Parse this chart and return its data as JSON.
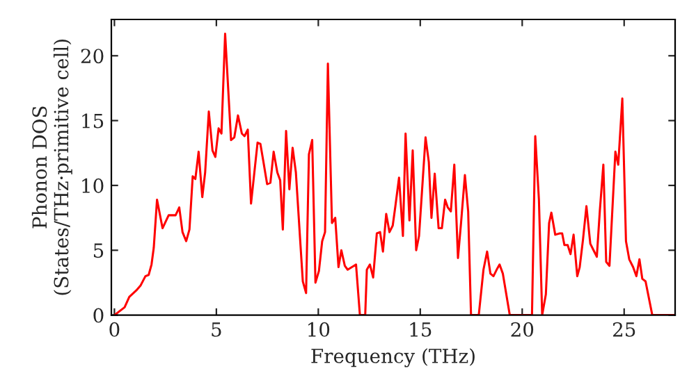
{
  "chart_data": {
    "type": "line",
    "xlabel": "Frequency (THz)",
    "ylabel": "Phonon DOS\n(States/THz·primitive cell)",
    "series": [
      {
        "color": "#ff0000",
        "x": [
          0,
          0.5,
          0.73,
          1.07,
          1.29,
          1.52,
          1.68,
          1.82,
          1.93,
          2.09,
          2.36,
          2.66,
          3.0,
          3.18,
          3.34,
          3.52,
          3.68,
          3.84,
          3.97,
          4.13,
          4.31,
          4.45,
          4.63,
          4.81,
          4.95,
          5.11,
          5.25,
          5.43,
          5.72,
          5.88,
          6.06,
          6.25,
          6.38,
          6.54,
          6.7,
          7.02,
          7.16,
          7.31,
          7.49,
          7.65,
          7.81,
          7.99,
          8.13,
          8.26,
          8.42,
          8.58,
          8.74,
          8.9,
          9.13,
          9.24,
          9.4,
          9.54,
          9.7,
          9.86,
          10.03,
          10.19,
          10.33,
          10.47,
          10.67,
          10.83,
          10.99,
          11.13,
          11.3,
          11.44,
          11.85,
          12.04,
          12.3,
          12.38,
          12.53,
          12.69,
          12.87,
          13.03,
          13.17,
          13.33,
          13.49,
          13.65,
          13.78,
          13.96,
          14.15,
          14.28,
          14.47,
          14.63,
          14.8,
          14.94,
          15.26,
          15.42,
          15.55,
          15.71,
          15.9,
          16.06,
          16.22,
          16.35,
          16.5,
          16.67,
          16.85,
          17.0,
          17.19,
          17.35,
          17.49,
          17.87,
          18.1,
          18.28,
          18.44,
          18.59,
          18.78,
          18.89,
          19.05,
          19.39,
          20.48,
          20.64,
          20.82,
          20.98,
          21.16,
          21.32,
          21.43,
          21.62,
          21.84,
          21.96,
          22.07,
          22.23,
          22.37,
          22.52,
          22.7,
          22.82,
          22.98,
          23.15,
          23.34,
          23.5,
          23.66,
          23.81,
          23.98,
          24.12,
          24.28,
          24.57,
          24.71,
          24.91,
          25.09,
          25.25,
          25.44,
          25.6,
          25.75,
          25.89,
          26.05,
          26.38,
          27.5
        ],
        "values": [
          0,
          0.6,
          1.4,
          1.9,
          2.3,
          3.0,
          3.1,
          3.9,
          5.2,
          8.9,
          6.7,
          7.7,
          7.7,
          8.3,
          6.4,
          5.7,
          6.6,
          10.7,
          10.5,
          12.6,
          9.1,
          11.0,
          15.7,
          12.7,
          12.2,
          14.4,
          14.0,
          21.7,
          13.5,
          13.7,
          15.4,
          14.0,
          13.8,
          14.3,
          8.6,
          13.3,
          13.2,
          11.8,
          10.1,
          10.2,
          12.6,
          11.0,
          10.4,
          6.6,
          14.2,
          9.7,
          12.9,
          11.0,
          5.3,
          2.6,
          1.7,
          12.4,
          13.5,
          2.5,
          3.4,
          5.7,
          6.4,
          19.4,
          7.1,
          7.5,
          3.7,
          5.0,
          3.8,
          3.5,
          3.9,
          0,
          0,
          3.5,
          3.9,
          2.9,
          6.3,
          6.4,
          4.9,
          7.8,
          6.4,
          6.9,
          8.4,
          10.6,
          6.1,
          14.0,
          7.3,
          12.7,
          5.0,
          6.1,
          13.7,
          11.8,
          7.5,
          10.9,
          6.7,
          6.7,
          8.9,
          8.3,
          8.0,
          11.6,
          4.4,
          7.1,
          10.8,
          8.0,
          0,
          0,
          3.5,
          4.9,
          3.2,
          3.0,
          3.6,
          3.9,
          3.2,
          0,
          0,
          13.8,
          8.9,
          0,
          1.6,
          7.1,
          7.9,
          6.2,
          6.3,
          6.3,
          5.4,
          5.4,
          4.7,
          6.2,
          3.0,
          3.7,
          5.8,
          8.4,
          5.5,
          5.0,
          4.5,
          8.1,
          11.6,
          4.1,
          3.8,
          12.6,
          11.6,
          16.7,
          5.7,
          4.3,
          3.7,
          3.0,
          4.3,
          2.8,
          2.6,
          0,
          0
        ]
      }
    ],
    "xlim": [
      -0.15,
      27.5
    ],
    "ylim": [
      0,
      22.8
    ],
    "xticks": [
      0,
      5,
      10,
      15,
      20,
      25
    ],
    "yticks": [
      0,
      5,
      10,
      15,
      20
    ],
    "grid": false
  }
}
